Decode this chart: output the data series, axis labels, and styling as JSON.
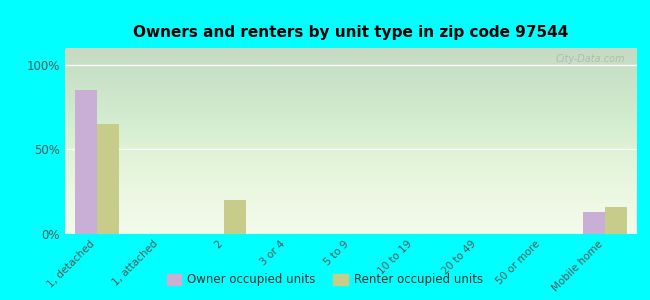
{
  "title": "Owners and renters by unit type in zip code 97544",
  "categories": [
    "1, detached",
    "1, attached",
    "2",
    "3 or 4",
    "5 to 9",
    "10 to 19",
    "20 to 49",
    "50 or more",
    "Mobile home"
  ],
  "owner_values": [
    85,
    0,
    0,
    0,
    0,
    0,
    0,
    0,
    13
  ],
  "renter_values": [
    65,
    0,
    20,
    0,
    0,
    0,
    0,
    0,
    16
  ],
  "owner_color": "#c9aed6",
  "renter_color": "#c8cc8a",
  "bg_color": "#00ffff",
  "yticks": [
    0,
    50,
    100
  ],
  "ylim": [
    0,
    110
  ],
  "watermark": "City-Data.com",
  "bar_width": 0.35,
  "legend_labels": [
    "Owner occupied units",
    "Renter occupied units"
  ]
}
